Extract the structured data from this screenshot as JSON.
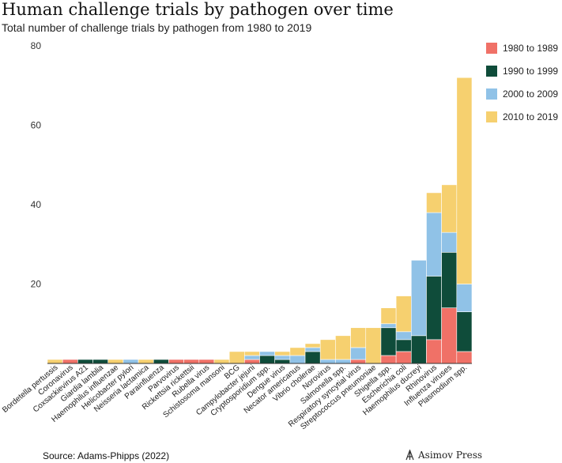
{
  "title": "Human challenge trials by pathogen over time",
  "subtitle": "Total number of challenge trials by pathogen from 1980 to 2019",
  "source": "Source: Adams-Phipps (2022)",
  "publisher": "Asimov Press",
  "chart_data": {
    "type": "bar",
    "stacked": true,
    "categories": [
      "Bordetella pertussis",
      "Coronavirus",
      "Coxsackievirus A21",
      "Giardia lamblia",
      "Haemophilus influenzae",
      "Helicobacter pylori",
      "Neisseria lactamica",
      "Parainfluenza",
      "Parvovirus",
      "Rickettsia rickettsii",
      "Rubella virus",
      "Schistosoma mansoni",
      "BCG",
      "Campylobacter jejuni",
      "Cryptosporidium spp.",
      "Dengue virus",
      "Necator americanus",
      "Vibrio cholerae",
      "Norovirus",
      "Salmonella spp.",
      "Respiratory syncytial virus",
      "Streptococcus pneumoniae",
      "Shigella spp.",
      "Escherichia coli",
      "Haemophilus ducreyi",
      "Rhinovirus",
      "Influenza viruses",
      "Plasmodium spp."
    ],
    "series": [
      {
        "name": "1980 to 1989",
        "color": "#f07167",
        "values": [
          0,
          1,
          0,
          0,
          0,
          0,
          0,
          0,
          1,
          1,
          1,
          0,
          0,
          1,
          0,
          0,
          0,
          0,
          0,
          0,
          1,
          0,
          2,
          3,
          0,
          6,
          14,
          3
        ]
      },
      {
        "name": "1990 to 1999",
        "color": "#0f4c3a",
        "values": [
          0,
          0,
          1,
          1,
          0,
          0,
          0,
          1,
          0,
          0,
          0,
          0,
          0,
          0,
          2,
          1,
          0,
          3,
          0,
          0,
          0,
          0,
          7,
          3,
          7,
          16,
          14,
          10
        ]
      },
      {
        "name": "2000 to 2009",
        "color": "#90c2e7",
        "values": [
          0,
          0,
          0,
          0,
          0,
          1,
          0,
          0,
          0,
          0,
          0,
          0,
          0,
          1,
          1,
          1,
          2,
          1,
          1,
          1,
          3,
          0,
          1,
          2,
          19,
          16,
          5,
          7
        ]
      },
      {
        "name": "2010 to 2019",
        "color": "#f6d06f",
        "values": [
          1,
          0,
          0,
          0,
          1,
          0,
          1,
          0,
          0,
          0,
          0,
          1,
          3,
          1,
          0,
          1,
          2,
          1,
          5,
          6,
          5,
          9,
          4,
          9,
          0,
          5,
          12,
          52
        ]
      }
    ],
    "ylim": [
      0,
      80
    ],
    "yticks": [
      20,
      40,
      60,
      80
    ],
    "xlabel": "",
    "ylabel": "",
    "grid": false,
    "legend_position": "right"
  }
}
